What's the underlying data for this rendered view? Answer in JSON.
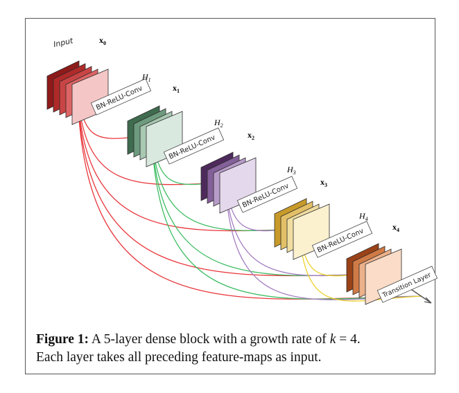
{
  "diagram": {
    "input_label": "Input",
    "stacks": [
      {
        "id": "x0",
        "var": "x",
        "sub": "0",
        "h_letter": "",
        "h_sub": ""
      },
      {
        "id": "x1",
        "var": "x",
        "sub": "1",
        "h_letter": "H",
        "h_sub": "1"
      },
      {
        "id": "x2",
        "var": "x",
        "sub": "2",
        "h_letter": "H",
        "h_sub": "2"
      },
      {
        "id": "x3",
        "var": "x",
        "sub": "3",
        "h_letter": "H",
        "h_sub": "3"
      },
      {
        "id": "x4",
        "var": "x",
        "sub": "4",
        "h_letter": "H",
        "h_sub": "4"
      }
    ],
    "bn_label": "BN-ReLU-Conv",
    "transition_label": "Transition Layer",
    "colors": {
      "x0": [
        "#8e1a1a",
        "#b02a2a",
        "#c94444",
        "#dd6464",
        "#f4c6c6"
      ],
      "x1": [
        "#3f6b4f",
        "#6e9b7f",
        "#a8c8b2",
        "#d9e9df"
      ],
      "x2": [
        "#4e2a5c",
        "#84619a",
        "#b79bc8",
        "#e4d8ec"
      ],
      "x3": [
        "#c79a2a",
        "#e3c067",
        "#f0dda0",
        "#fbf1cf"
      ],
      "x4": [
        "#9a4218",
        "#d07a45",
        "#ecb18a",
        "#fadcc8"
      ],
      "red": "#e8353a",
      "green": "#3ebd63",
      "purple": "#a37cc0",
      "yellow": "#ecd12d"
    }
  },
  "caption": {
    "label": "Figure 1:",
    "text_a": "A 5-layer dense block with a growth rate of",
    "k_var": "k",
    "text_b": "= 4.",
    "text_c": "Each layer takes all preceding feature-maps as input."
  }
}
